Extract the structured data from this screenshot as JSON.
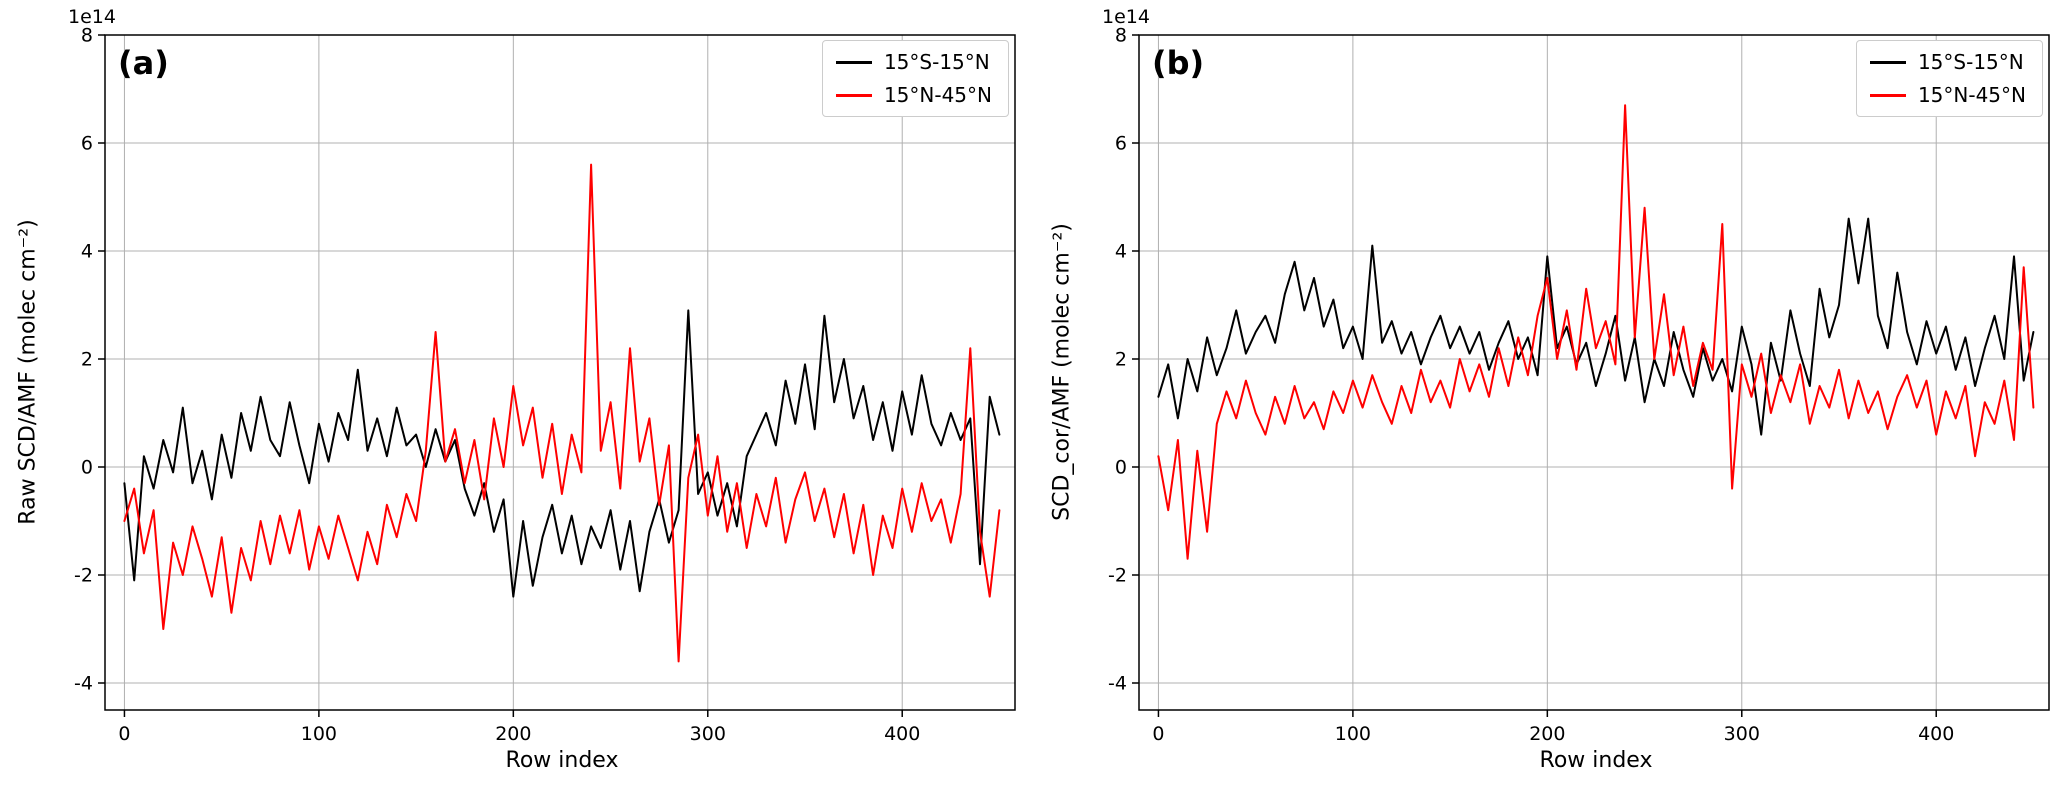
{
  "figure": {
    "offset_text": "1e14",
    "panels": [
      {
        "label": "(a)"
      },
      {
        "label": "(b)"
      }
    ]
  },
  "chart_data": [
    {
      "type": "line",
      "title": "(a)",
      "xlabel": "Row index",
      "ylabel": "Raw SCD/AMF (molec cm⁻²)",
      "y_offset_factor": "1e14",
      "xlim": [
        -10,
        458
      ],
      "ylim": [
        -4.5,
        8
      ],
      "xticks": [
        0,
        100,
        200,
        300,
        400
      ],
      "yticks": [
        -4,
        -2,
        0,
        2,
        4,
        6,
        8
      ],
      "grid": true,
      "legend_position": "upper right",
      "x": [
        0,
        5,
        10,
        15,
        20,
        25,
        30,
        35,
        40,
        45,
        50,
        55,
        60,
        65,
        70,
        75,
        80,
        85,
        90,
        95,
        100,
        105,
        110,
        115,
        120,
        125,
        130,
        135,
        140,
        145,
        150,
        155,
        160,
        165,
        170,
        175,
        180,
        185,
        190,
        195,
        200,
        205,
        210,
        215,
        220,
        225,
        230,
        235,
        240,
        245,
        250,
        255,
        260,
        265,
        270,
        275,
        280,
        285,
        290,
        295,
        300,
        305,
        310,
        315,
        320,
        325,
        330,
        335,
        340,
        345,
        350,
        355,
        360,
        365,
        370,
        375,
        380,
        385,
        390,
        395,
        400,
        405,
        410,
        415,
        420,
        425,
        430,
        435,
        440,
        445,
        450
      ],
      "series": [
        {
          "name": "15°S-15°N",
          "color": "#000000",
          "values": [
            -0.3,
            -2.1,
            0.2,
            -0.4,
            0.5,
            -0.1,
            1.1,
            -0.3,
            0.3,
            -0.6,
            0.6,
            -0.2,
            1.0,
            0.3,
            1.3,
            0.5,
            0.2,
            1.2,
            0.4,
            -0.3,
            0.8,
            0.1,
            1.0,
            0.5,
            1.8,
            0.3,
            0.9,
            0.2,
            1.1,
            0.4,
            0.6,
            0.0,
            0.7,
            0.1,
            0.5,
            -0.4,
            -0.9,
            -0.3,
            -1.2,
            -0.6,
            -2.4,
            -1.0,
            -2.2,
            -1.3,
            -0.7,
            -1.6,
            -0.9,
            -1.8,
            -1.1,
            -1.5,
            -0.8,
            -1.9,
            -1.0,
            -2.3,
            -1.2,
            -0.6,
            -1.4,
            -0.8,
            2.9,
            -0.5,
            -0.1,
            -0.9,
            -0.3,
            -1.1,
            0.2,
            0.6,
            1.0,
            0.4,
            1.6,
            0.8,
            1.9,
            0.7,
            2.8,
            1.2,
            2.0,
            0.9,
            1.5,
            0.5,
            1.2,
            0.3,
            1.4,
            0.6,
            1.7,
            0.8,
            0.4,
            1.0,
            0.5,
            0.9,
            -1.8,
            1.3,
            0.6
          ]
        },
        {
          "name": "15°N-45°N",
          "color": "#ff0000",
          "values": [
            -1.0,
            -0.4,
            -1.6,
            -0.8,
            -3.0,
            -1.4,
            -2.0,
            -1.1,
            -1.7,
            -2.4,
            -1.3,
            -2.7,
            -1.5,
            -2.1,
            -1.0,
            -1.8,
            -0.9,
            -1.6,
            -0.8,
            -1.9,
            -1.1,
            -1.7,
            -0.9,
            -1.5,
            -2.1,
            -1.2,
            -1.8,
            -0.7,
            -1.3,
            -0.5,
            -1.0,
            0.3,
            2.5,
            0.1,
            0.7,
            -0.3,
            0.5,
            -0.6,
            0.9,
            0.0,
            1.5,
            0.4,
            1.1,
            -0.2,
            0.8,
            -0.5,
            0.6,
            -0.1,
            5.6,
            0.3,
            1.2,
            -0.4,
            2.2,
            0.1,
            0.9,
            -0.7,
            0.4,
            -3.6,
            -0.2,
            0.6,
            -0.9,
            0.2,
            -1.2,
            -0.3,
            -1.5,
            -0.5,
            -1.1,
            -0.2,
            -1.4,
            -0.6,
            -0.1,
            -1.0,
            -0.4,
            -1.3,
            -0.5,
            -1.6,
            -0.7,
            -2.0,
            -0.9,
            -1.5,
            -0.4,
            -1.2,
            -0.3,
            -1.0,
            -0.6,
            -1.4,
            -0.5,
            2.2,
            -1.2,
            -2.4,
            -0.8
          ]
        }
      ]
    },
    {
      "type": "line",
      "title": "(b)",
      "xlabel": "Row index",
      "ylabel": "SCD_cor/AMF (molec cm⁻²)",
      "y_offset_factor": "1e14",
      "xlim": [
        -10,
        458
      ],
      "ylim": [
        -4.5,
        8
      ],
      "xticks": [
        0,
        100,
        200,
        300,
        400
      ],
      "yticks": [
        -4,
        -2,
        0,
        2,
        4,
        6,
        8
      ],
      "grid": true,
      "legend_position": "upper right",
      "x": [
        0,
        5,
        10,
        15,
        20,
        25,
        30,
        35,
        40,
        45,
        50,
        55,
        60,
        65,
        70,
        75,
        80,
        85,
        90,
        95,
        100,
        105,
        110,
        115,
        120,
        125,
        130,
        135,
        140,
        145,
        150,
        155,
        160,
        165,
        170,
        175,
        180,
        185,
        190,
        195,
        200,
        205,
        210,
        215,
        220,
        225,
        230,
        235,
        240,
        245,
        250,
        255,
        260,
        265,
        270,
        275,
        280,
        285,
        290,
        295,
        300,
        305,
        310,
        315,
        320,
        325,
        330,
        335,
        340,
        345,
        350,
        355,
        360,
        365,
        370,
        375,
        380,
        385,
        390,
        395,
        400,
        405,
        410,
        415,
        420,
        425,
        430,
        435,
        440,
        445,
        450
      ],
      "series": [
        {
          "name": "15°S-15°N",
          "color": "#000000",
          "values": [
            1.3,
            1.9,
            0.9,
            2.0,
            1.4,
            2.4,
            1.7,
            2.2,
            2.9,
            2.1,
            2.5,
            2.8,
            2.3,
            3.2,
            3.8,
            2.9,
            3.5,
            2.6,
            3.1,
            2.2,
            2.6,
            2.0,
            4.1,
            2.3,
            2.7,
            2.1,
            2.5,
            1.9,
            2.4,
            2.8,
            2.2,
            2.6,
            2.1,
            2.5,
            1.8,
            2.3,
            2.7,
            2.0,
            2.4,
            1.7,
            3.9,
            2.2,
            2.6,
            1.9,
            2.3,
            1.5,
            2.1,
            2.8,
            1.6,
            2.4,
            1.2,
            2.0,
            1.5,
            2.5,
            1.8,
            1.3,
            2.2,
            1.6,
            2.0,
            1.4,
            2.6,
            1.9,
            0.6,
            2.3,
            1.6,
            2.9,
            2.1,
            1.5,
            3.3,
            2.4,
            3.0,
            4.6,
            3.4,
            4.6,
            2.8,
            2.2,
            3.6,
            2.5,
            1.9,
            2.7,
            2.1,
            2.6,
            1.8,
            2.4,
            1.5,
            2.2,
            2.8,
            2.0,
            3.9,
            1.6,
            2.5
          ]
        },
        {
          "name": "15°N-45°N",
          "color": "#ff0000",
          "values": [
            0.2,
            -0.8,
            0.5,
            -1.7,
            0.3,
            -1.2,
            0.8,
            1.4,
            0.9,
            1.6,
            1.0,
            0.6,
            1.3,
            0.8,
            1.5,
            0.9,
            1.2,
            0.7,
            1.4,
            1.0,
            1.6,
            1.1,
            1.7,
            1.2,
            0.8,
            1.5,
            1.0,
            1.8,
            1.2,
            1.6,
            1.1,
            2.0,
            1.4,
            1.9,
            1.3,
            2.2,
            1.5,
            2.4,
            1.7,
            2.8,
            3.5,
            2.0,
            2.9,
            1.8,
            3.3,
            2.2,
            2.7,
            1.9,
            6.7,
            2.4,
            4.8,
            2.0,
            3.2,
            1.7,
            2.6,
            1.5,
            2.3,
            1.8,
            4.5,
            -0.4,
            1.9,
            1.3,
            2.1,
            1.0,
            1.7,
            1.2,
            1.9,
            0.8,
            1.5,
            1.1,
            1.8,
            0.9,
            1.6,
            1.0,
            1.4,
            0.7,
            1.3,
            1.7,
            1.1,
            1.6,
            0.6,
            1.4,
            0.9,
            1.5,
            0.2,
            1.2,
            0.8,
            1.6,
            0.5,
            3.7,
            1.1
          ]
        }
      ]
    }
  ]
}
